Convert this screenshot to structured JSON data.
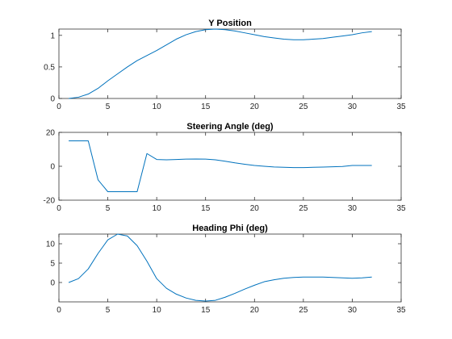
{
  "colors": {
    "line": "#0072BD",
    "axis": "#262626",
    "background": "#ffffff"
  },
  "chart_data": [
    {
      "type": "line",
      "title": "Y Position",
      "xlabel": "",
      "ylabel": "",
      "xlim": [
        0,
        35
      ],
      "ylim": [
        0,
        1.1
      ],
      "xticks": [
        0,
        5,
        10,
        15,
        20,
        25,
        30,
        35
      ],
      "yticks": [
        0,
        0.5,
        1
      ],
      "grid": false,
      "series": [
        {
          "x": [
            1,
            2,
            3,
            4,
            5,
            6,
            7,
            8,
            9,
            10,
            11,
            12,
            13,
            14,
            15,
            16,
            17,
            18,
            19,
            20,
            21,
            22,
            23,
            24,
            25,
            26,
            27,
            28,
            29,
            30,
            31,
            32
          ],
          "y": [
            0,
            0.02,
            0.07,
            0.16,
            0.28,
            0.39,
            0.5,
            0.6,
            0.68,
            0.76,
            0.85,
            0.94,
            1.01,
            1.06,
            1.09,
            1.1,
            1.09,
            1.07,
            1.04,
            1.01,
            0.98,
            0.96,
            0.94,
            0.93,
            0.93,
            0.94,
            0.95,
            0.97,
            0.99,
            1.01,
            1.04,
            1.06
          ]
        }
      ]
    },
    {
      "type": "line",
      "title": "Steering Angle (deg)",
      "xlabel": "",
      "ylabel": "",
      "xlim": [
        0,
        35
      ],
      "ylim": [
        -20,
        20
      ],
      "xticks": [
        0,
        5,
        10,
        15,
        20,
        25,
        30,
        35
      ],
      "yticks": [
        -20,
        0,
        20
      ],
      "grid": false,
      "series": [
        {
          "x": [
            1,
            2,
            3,
            4,
            5,
            6,
            7,
            8,
            9,
            10,
            11,
            12,
            13,
            14,
            15,
            16,
            17,
            18,
            19,
            20,
            21,
            22,
            23,
            24,
            25,
            26,
            27,
            28,
            29,
            30,
            31,
            32
          ],
          "y": [
            15,
            15,
            15,
            -8,
            -15,
            -15,
            -15,
            -15,
            7.5,
            4,
            3.8,
            4,
            4.2,
            4.3,
            4.2,
            3.8,
            3,
            2,
            1.2,
            0.5,
            0,
            -0.4,
            -0.6,
            -0.8,
            -0.8,
            -0.6,
            -0.5,
            -0.3,
            -0.1,
            0.5,
            0.5,
            0.5
          ]
        }
      ]
    },
    {
      "type": "line",
      "title": "Heading Phi (deg)",
      "xlabel": "",
      "ylabel": "",
      "xlim": [
        0,
        35
      ],
      "ylim": [
        -5,
        12.5
      ],
      "xticks": [
        0,
        5,
        10,
        15,
        20,
        25,
        30,
        35
      ],
      "yticks": [
        0,
        5,
        10
      ],
      "grid": false,
      "series": [
        {
          "x": [
            1,
            2,
            3,
            4,
            5,
            6,
            7,
            8,
            9,
            10,
            11,
            12,
            13,
            14,
            15,
            16,
            17,
            18,
            19,
            20,
            21,
            22,
            23,
            24,
            25,
            26,
            27,
            28,
            29,
            30,
            31,
            32
          ],
          "y": [
            0,
            1,
            3.5,
            7.5,
            11,
            12.5,
            12,
            9.5,
            5.5,
            1,
            -1.5,
            -3,
            -4,
            -4.6,
            -4.8,
            -4.6,
            -3.8,
            -2.8,
            -1.7,
            -0.7,
            0.2,
            0.7,
            1.1,
            1.3,
            1.4,
            1.4,
            1.4,
            1.3,
            1.2,
            1.1,
            1.2,
            1.4
          ]
        }
      ]
    }
  ]
}
